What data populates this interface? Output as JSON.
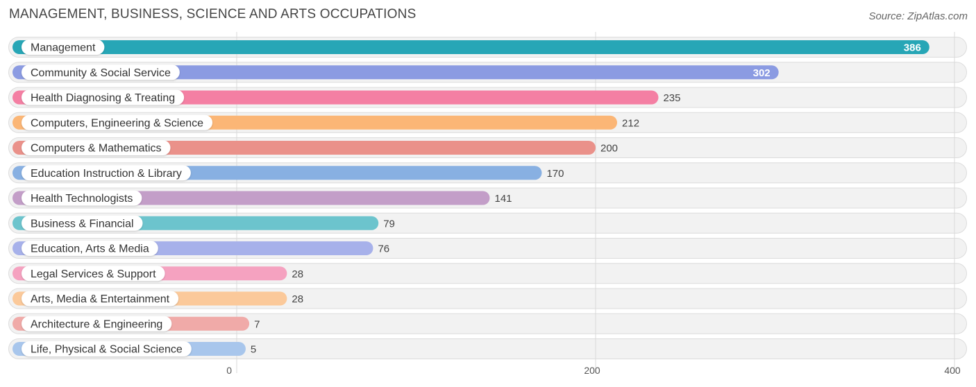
{
  "title": "MANAGEMENT, BUSINESS, SCIENCE AND ARTS OCCUPATIONS",
  "source": "Source: ZipAtlas.com",
  "chart_data": {
    "type": "bar",
    "orientation": "horizontal",
    "title": "MANAGEMENT, BUSINESS, SCIENCE AND ARTS OCCUPATIONS",
    "xlim": [
      0,
      400
    ],
    "xticks": [
      "0",
      "200",
      "400"
    ],
    "grid": true,
    "categories": [
      "Management",
      "Community & Social Service",
      "Health Diagnosing & Treating",
      "Computers, Engineering & Science",
      "Computers & Mathematics",
      "Education Instruction & Library",
      "Health Technologists",
      "Business & Financial",
      "Education, Arts & Media",
      "Legal Services & Support",
      "Arts, Media & Entertainment",
      "Architecture & Engineering",
      "Life, Physical & Social Science"
    ],
    "values": [
      386,
      302,
      235,
      212,
      200,
      170,
      141,
      79,
      76,
      28,
      28,
      7,
      5
    ],
    "value_labels": [
      "386",
      "302",
      "235",
      "212",
      "200",
      "170",
      "141",
      "79",
      "76",
      "28",
      "28",
      "7",
      "5"
    ],
    "colors": [
      "#27a6b6",
      "#8b9be2",
      "#f47fa3",
      "#fbb676",
      "#ea918a",
      "#88b0e2",
      "#c39ec8",
      "#6cc4cd",
      "#a7b1ea",
      "#f5a2c0",
      "#fbc99a",
      "#f0aaa8",
      "#a8c6ec"
    ]
  }
}
